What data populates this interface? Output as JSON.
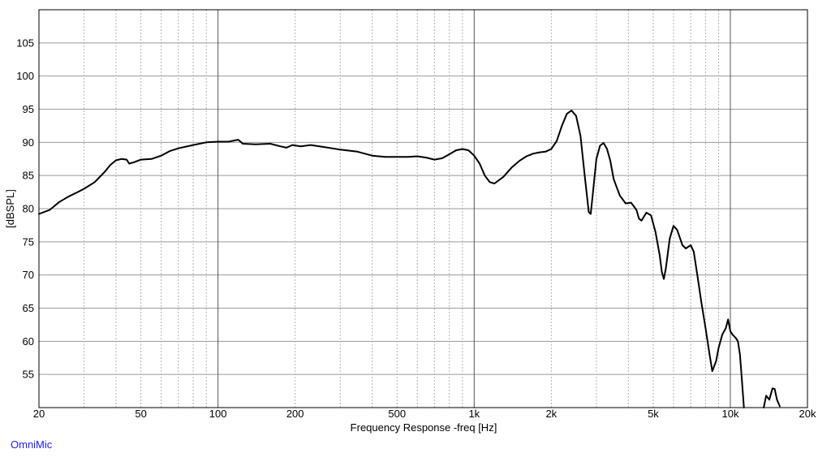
{
  "chart_data": {
    "type": "line",
    "title": "",
    "xlabel": "Frequency Response -freq [Hz]",
    "ylabel": "[dBSPL]",
    "xscale": "log",
    "xlim": [
      20,
      20000
    ],
    "ylim": [
      50,
      110
    ],
    "grid": true,
    "x_ticks": [
      {
        "value": 20,
        "label": "20"
      },
      {
        "value": 50,
        "label": "50"
      },
      {
        "value": 100,
        "label": "100"
      },
      {
        "value": 200,
        "label": "200"
      },
      {
        "value": 500,
        "label": "500"
      },
      {
        "value": 1000,
        "label": "1k"
      },
      {
        "value": 2000,
        "label": "2k"
      },
      {
        "value": 5000,
        "label": "5k"
      },
      {
        "value": 10000,
        "label": "10k"
      },
      {
        "value": 20000,
        "label": "20k"
      }
    ],
    "y_ticks": [
      55,
      60,
      65,
      70,
      75,
      80,
      85,
      90,
      95,
      100,
      105
    ],
    "series": [
      {
        "color": "#000000",
        "segments": [
          [
            [
              20,
              79.2
            ],
            [
              22,
              79.8
            ],
            [
              24,
              81.0
            ],
            [
              26,
              81.8
            ],
            [
              28,
              82.4
            ],
            [
              30,
              83.0
            ],
            [
              33,
              84.0
            ],
            [
              36,
              85.5
            ],
            [
              38,
              86.6
            ],
            [
              40,
              87.3
            ],
            [
              42,
              87.5
            ],
            [
              44,
              87.4
            ],
            [
              45,
              86.8
            ],
            [
              47,
              87.0
            ],
            [
              50,
              87.4
            ],
            [
              55,
              87.5
            ],
            [
              60,
              88.0
            ],
            [
              65,
              88.7
            ],
            [
              70,
              89.1
            ],
            [
              80,
              89.6
            ],
            [
              90,
              90.0
            ],
            [
              100,
              90.1
            ],
            [
              110,
              90.1
            ],
            [
              120,
              90.4
            ],
            [
              125,
              89.8
            ],
            [
              140,
              89.7
            ],
            [
              160,
              89.8
            ],
            [
              175,
              89.4
            ],
            [
              185,
              89.2
            ],
            [
              195,
              89.6
            ],
            [
              210,
              89.4
            ],
            [
              230,
              89.6
            ],
            [
              260,
              89.3
            ],
            [
              300,
              88.9
            ],
            [
              350,
              88.6
            ],
            [
              400,
              88.0
            ],
            [
              450,
              87.8
            ],
            [
              500,
              87.8
            ],
            [
              550,
              87.8
            ],
            [
              600,
              87.9
            ],
            [
              650,
              87.7
            ],
            [
              700,
              87.4
            ],
            [
              750,
              87.6
            ],
            [
              800,
              88.2
            ],
            [
              850,
              88.8
            ],
            [
              900,
              89.0
            ],
            [
              950,
              88.8
            ],
            [
              1000,
              88.0
            ],
            [
              1050,
              86.8
            ],
            [
              1100,
              85.0
            ],
            [
              1150,
              84.0
            ],
            [
              1200,
              83.8
            ],
            [
              1300,
              84.8
            ],
            [
              1400,
              86.2
            ],
            [
              1500,
              87.2
            ],
            [
              1600,
              87.9
            ],
            [
              1700,
              88.3
            ],
            [
              1800,
              88.5
            ],
            [
              1900,
              88.6
            ],
            [
              2000,
              89.0
            ],
            [
              2100,
              90.2
            ],
            [
              2200,
              92.5
            ],
            [
              2300,
              94.3
            ],
            [
              2400,
              94.8
            ],
            [
              2500,
              94.0
            ],
            [
              2600,
              91.0
            ],
            [
              2700,
              85.0
            ],
            [
              2800,
              79.5
            ],
            [
              2850,
              79.2
            ],
            [
              2900,
              82.0
            ],
            [
              3000,
              87.5
            ],
            [
              3100,
              89.5
            ],
            [
              3200,
              89.9
            ],
            [
              3300,
              89.0
            ],
            [
              3400,
              87.2
            ],
            [
              3500,
              84.5
            ],
            [
              3700,
              82.0
            ],
            [
              3900,
              80.8
            ],
            [
              4100,
              80.9
            ],
            [
              4300,
              79.8
            ],
            [
              4400,
              78.5
            ],
            [
              4500,
              78.2
            ],
            [
              4700,
              79.4
            ],
            [
              4900,
              79.0
            ],
            [
              5100,
              76.5
            ],
            [
              5300,
              73.0
            ],
            [
              5400,
              70.5
            ],
            [
              5500,
              69.4
            ],
            [
              5600,
              71.0
            ],
            [
              5800,
              75.5
            ],
            [
              6000,
              77.4
            ],
            [
              6200,
              76.8
            ],
            [
              6500,
              74.5
            ],
            [
              6700,
              74.0
            ],
            [
              7000,
              74.5
            ],
            [
              7200,
              73.5
            ],
            [
              7500,
              69.0
            ],
            [
              7700,
              66.0
            ],
            [
              8000,
              62.0
            ],
            [
              8300,
              58.0
            ],
            [
              8500,
              55.5
            ],
            [
              8800,
              57.0
            ],
            [
              9000,
              59.0
            ],
            [
              9300,
              61.0
            ],
            [
              9600,
              62.0
            ],
            [
              9800,
              63.3
            ],
            [
              10000,
              61.5
            ],
            [
              10200,
              61.0
            ],
            [
              10500,
              60.5
            ],
            [
              10700,
              60.0
            ],
            [
              10900,
              58.0
            ],
            [
              11100,
              54.0
            ],
            [
              11300,
              50.0
            ]
          ],
          [
            [
              13500,
              50.0
            ],
            [
              13800,
              51.8
            ],
            [
              14200,
              51.2
            ],
            [
              14600,
              52.9
            ],
            [
              14900,
              52.8
            ],
            [
              15200,
              51.2
            ],
            [
              15600,
              50.2
            ]
          ]
        ]
      }
    ]
  },
  "footer": {
    "brand": "OmniMic"
  }
}
